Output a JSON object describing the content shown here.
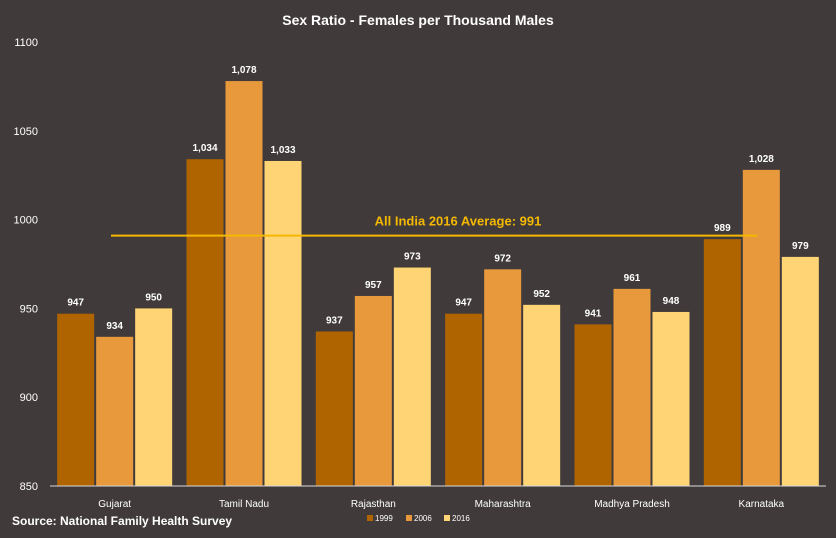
{
  "chart_data": {
    "type": "bar",
    "title": "Sex Ratio - Females per Thousand Males",
    "xlabel": "",
    "ylabel": "",
    "ylim": [
      850,
      1100
    ],
    "y_ticks": [
      850,
      900,
      950,
      1000,
      1050,
      1100
    ],
    "y_tick_labels": [
      "850",
      "900",
      "950",
      "1000",
      "1050",
      "1100"
    ],
    "grid": false,
    "legend_position": "bottom",
    "categories": [
      "Gujarat",
      "Tamil Nadu",
      "Rajasthan",
      "Maharashtra",
      "Madhya Pradesh",
      "Karnataka"
    ],
    "series": [
      {
        "name": "1999",
        "values": [
          947,
          1034,
          937,
          947,
          941,
          989
        ],
        "labels": [
          "947",
          "1,034",
          "937",
          "947",
          "941",
          "989"
        ],
        "color": "#b06400"
      },
      {
        "name": "2006",
        "values": [
          934,
          1078,
          957,
          972,
          961,
          1028
        ],
        "labels": [
          "934",
          "1,078",
          "957",
          "972",
          "961",
          "1,028"
        ],
        "color": "#e8993c"
      },
      {
        "name": "2016",
        "values": [
          950,
          1033,
          973,
          952,
          948,
          979
        ],
        "labels": [
          "950",
          "1,033",
          "973",
          "952",
          "948",
          "979"
        ],
        "color": "#ffd475"
      }
    ],
    "reference_line": {
      "value": 991,
      "label": "All India 2016 Average: 991",
      "color": "#f5b800"
    }
  },
  "source": "Source:  National  Family Health Survey",
  "colors": {
    "background": "#403b3a",
    "text": "#ffffff"
  }
}
